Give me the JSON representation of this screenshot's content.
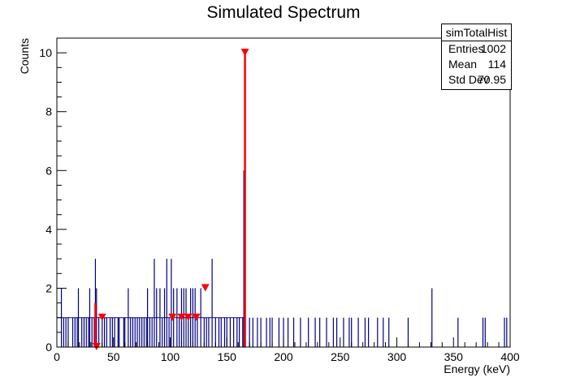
{
  "chart_data": {
    "type": "bar",
    "title": "Simulated Spectrum",
    "xlabel": "Energy (keV)",
    "ylabel": "Counts",
    "xlim": [
      0,
      400
    ],
    "ylim": [
      0,
      10.5
    ],
    "xticks": [
      0,
      50,
      100,
      150,
      200,
      250,
      300,
      350,
      400
    ],
    "yticks": [
      0,
      2,
      4,
      6,
      8,
      10
    ],
    "grid": false,
    "legend": "none",
    "histogram_color": "#000080",
    "marker_color": "#ff0000",
    "bins": [
      {
        "x": 4,
        "y": 2
      },
      {
        "x": 6,
        "y": 1
      },
      {
        "x": 8,
        "y": 1
      },
      {
        "x": 10,
        "y": 1
      },
      {
        "x": 14,
        "y": 1
      },
      {
        "x": 16,
        "y": 1
      },
      {
        "x": 18,
        "y": 1
      },
      {
        "x": 19,
        "y": 2
      },
      {
        "x": 22,
        "y": 1
      },
      {
        "x": 24,
        "y": 1
      },
      {
        "x": 26,
        "y": 1
      },
      {
        "x": 28,
        "y": 1
      },
      {
        "x": 29,
        "y": 2
      },
      {
        "x": 31,
        "y": 1
      },
      {
        "x": 33,
        "y": 1
      },
      {
        "x": 34,
        "y": 3
      },
      {
        "x": 35,
        "y": 2
      },
      {
        "x": 37,
        "y": 1
      },
      {
        "x": 40,
        "y": 1
      },
      {
        "x": 42,
        "y": 1
      },
      {
        "x": 44,
        "y": 1
      },
      {
        "x": 47,
        "y": 1
      },
      {
        "x": 49,
        "y": 1
      },
      {
        "x": 51,
        "y": 1
      },
      {
        "x": 54,
        "y": 1
      },
      {
        "x": 55,
        "y": 1
      },
      {
        "x": 59,
        "y": 1
      },
      {
        "x": 60,
        "y": 1
      },
      {
        "x": 63,
        "y": 2
      },
      {
        "x": 65,
        "y": 1
      },
      {
        "x": 67,
        "y": 1
      },
      {
        "x": 69,
        "y": 1
      },
      {
        "x": 71,
        "y": 1
      },
      {
        "x": 73,
        "y": 1
      },
      {
        "x": 75,
        "y": 1
      },
      {
        "x": 77,
        "y": 1
      },
      {
        "x": 79,
        "y": 1
      },
      {
        "x": 80,
        "y": 2
      },
      {
        "x": 82,
        "y": 1
      },
      {
        "x": 84,
        "y": 1
      },
      {
        "x": 86,
        "y": 3
      },
      {
        "x": 88,
        "y": 2
      },
      {
        "x": 91,
        "y": 2
      },
      {
        "x": 93,
        "y": 1
      },
      {
        "x": 95,
        "y": 2
      },
      {
        "x": 97,
        "y": 3
      },
      {
        "x": 99,
        "y": 1
      },
      {
        "x": 101,
        "y": 3
      },
      {
        "x": 103,
        "y": 2
      },
      {
        "x": 106,
        "y": 2
      },
      {
        "x": 108,
        "y": 1
      },
      {
        "x": 110,
        "y": 2
      },
      {
        "x": 112,
        "y": 2
      },
      {
        "x": 114,
        "y": 2
      },
      {
        "x": 116,
        "y": 1
      },
      {
        "x": 118,
        "y": 2
      },
      {
        "x": 120,
        "y": 2
      },
      {
        "x": 122,
        "y": 2
      },
      {
        "x": 124,
        "y": 1
      },
      {
        "x": 127,
        "y": 2
      },
      {
        "x": 130,
        "y": 1
      },
      {
        "x": 132,
        "y": 1
      },
      {
        "x": 134,
        "y": 1
      },
      {
        "x": 137,
        "y": 3
      },
      {
        "x": 140,
        "y": 1
      },
      {
        "x": 143,
        "y": 1
      },
      {
        "x": 145,
        "y": 1
      },
      {
        "x": 148,
        "y": 1
      },
      {
        "x": 150,
        "y": 1
      },
      {
        "x": 153,
        "y": 1
      },
      {
        "x": 156,
        "y": 1
      },
      {
        "x": 159,
        "y": 1
      },
      {
        "x": 161,
        "y": 1
      },
      {
        "x": 164,
        "y": 1
      },
      {
        "x": 165,
        "y": 6
      },
      {
        "x": 166,
        "y": 10
      },
      {
        "x": 170,
        "y": 1
      },
      {
        "x": 173,
        "y": 1
      },
      {
        "x": 177,
        "y": 1
      },
      {
        "x": 180,
        "y": 1
      },
      {
        "x": 185,
        "y": 1
      },
      {
        "x": 188,
        "y": 1
      },
      {
        "x": 190,
        "y": 1
      },
      {
        "x": 196,
        "y": 1
      },
      {
        "x": 200,
        "y": 1
      },
      {
        "x": 204,
        "y": 1
      },
      {
        "x": 209,
        "y": 1
      },
      {
        "x": 215,
        "y": 1
      },
      {
        "x": 222,
        "y": 1
      },
      {
        "x": 228,
        "y": 1
      },
      {
        "x": 232,
        "y": 1
      },
      {
        "x": 238,
        "y": 1
      },
      {
        "x": 244,
        "y": 1
      },
      {
        "x": 247,
        "y": 1
      },
      {
        "x": 253,
        "y": 1
      },
      {
        "x": 258,
        "y": 1
      },
      {
        "x": 260,
        "y": 1
      },
      {
        "x": 266,
        "y": 1
      },
      {
        "x": 272,
        "y": 1
      },
      {
        "x": 275,
        "y": 1
      },
      {
        "x": 283,
        "y": 1
      },
      {
        "x": 288,
        "y": 1
      },
      {
        "x": 293,
        "y": 1
      },
      {
        "x": 310,
        "y": 1
      },
      {
        "x": 331,
        "y": 2
      },
      {
        "x": 354,
        "y": 1
      },
      {
        "x": 376,
        "y": 1
      },
      {
        "x": 378,
        "y": 1
      },
      {
        "x": 395,
        "y": 1
      },
      {
        "x": 397,
        "y": 1
      }
    ],
    "peak_markers": [
      {
        "x": 35,
        "y": 0
      },
      {
        "x": 40,
        "y": 1
      },
      {
        "x": 102,
        "y": 1
      },
      {
        "x": 110,
        "y": 1
      },
      {
        "x": 116,
        "y": 1
      },
      {
        "x": 123,
        "y": 1
      },
      {
        "x": 131,
        "y": 2
      },
      {
        "x": 166,
        "y": 10
      }
    ],
    "peak_lines": [
      {
        "x": 34,
        "y": 1.5
      },
      {
        "x": 166,
        "y": 10
      }
    ]
  },
  "stats": {
    "name": "simTotalHist",
    "rows": [
      {
        "key": "Entries",
        "value": "1002"
      },
      {
        "key": "Mean",
        "value": "114"
      },
      {
        "key": "Std Dev",
        "value": "70.95"
      }
    ]
  }
}
